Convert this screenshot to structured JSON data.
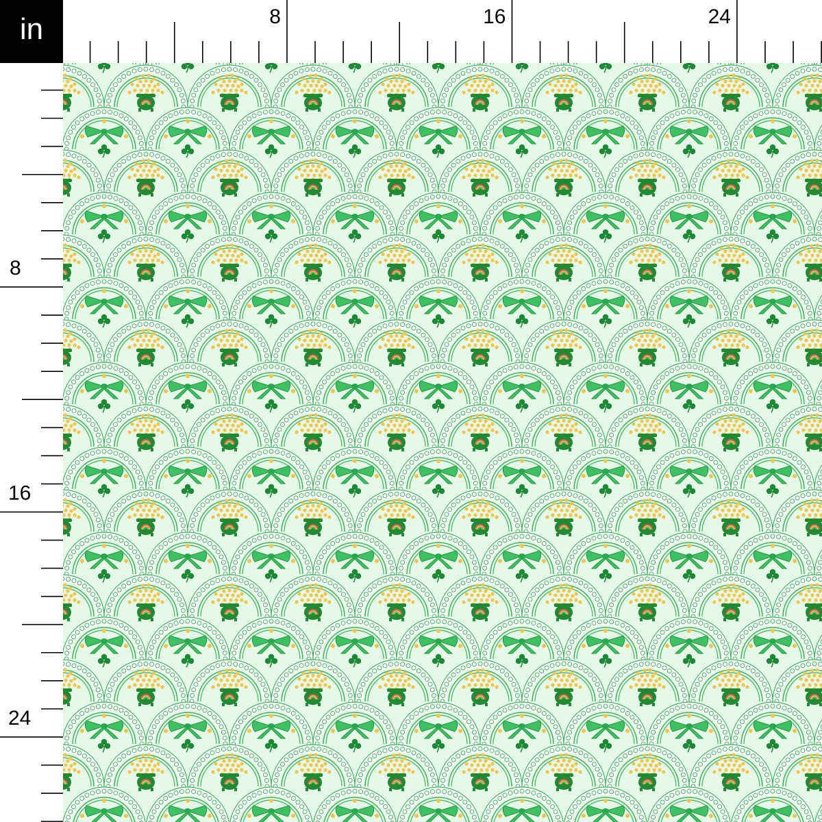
{
  "ruler": {
    "unit": "in",
    "top_labels": [
      {
        "inch": 8,
        "text": "8"
      },
      {
        "inch": 16,
        "text": "16"
      },
      {
        "inch": 24,
        "text": "24"
      }
    ],
    "left_labels": [
      {
        "inch": 8,
        "text": "8"
      },
      {
        "inch": 16,
        "text": "16"
      },
      {
        "inch": 24,
        "text": "24"
      }
    ]
  },
  "pattern": {
    "motifs": [
      "pot-of-gold",
      "gold-coins",
      "rainbow",
      "green-bow",
      "shamrock",
      "scalloped-scale"
    ],
    "colors": {
      "background": "#e6f8e8",
      "scallop_line": "#3cb55a",
      "pot": "#1f8a32",
      "coin": "#f2c54a",
      "bow": "#3fc062",
      "shamrock": "#1c8a34",
      "rainbow": [
        "#e8566b",
        "#f2c54a",
        "#5cc46e"
      ]
    }
  }
}
